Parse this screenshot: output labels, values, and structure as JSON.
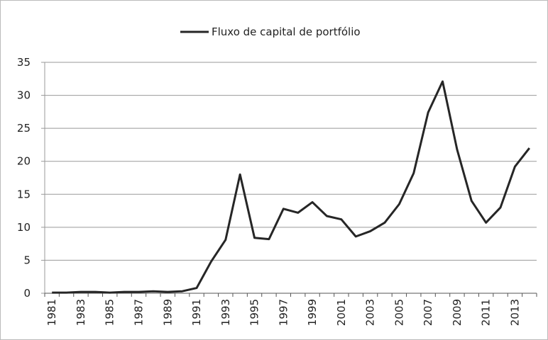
{
  "chart_data": {
    "type": "line",
    "categories": [
      "1981",
      null,
      "1983",
      null,
      "1985",
      null,
      "1987",
      null,
      "1989",
      null,
      "1991",
      null,
      "1993",
      null,
      "1995",
      null,
      "1997",
      null,
      "1999",
      null,
      "2001",
      null,
      "2003",
      null,
      "2005",
      null,
      "2007",
      null,
      "2009",
      null,
      "2011",
      null,
      "2013",
      null
    ],
    "series": [
      {
        "name": "Fluxo de capital de portfólio",
        "color": "#262626",
        "values": [
          0.1,
          0.1,
          0.2,
          0.2,
          0.1,
          0.2,
          0.2,
          0.3,
          0.2,
          0.3,
          0.8,
          4.8,
          8.1,
          18,
          8.4,
          8.2,
          12.8,
          12.2,
          13.8,
          11.7,
          11.2,
          8.6,
          9.4,
          10.7,
          13.5,
          18.2,
          27.4,
          32.1,
          21.8,
          14,
          10.7,
          13,
          19.2,
          22
        ]
      }
    ],
    "ylim": [
      0,
      35
    ],
    "yticks": [
      0,
      5,
      10,
      15,
      20,
      25,
      30,
      35
    ],
    "grid": true,
    "legend": "top"
  }
}
